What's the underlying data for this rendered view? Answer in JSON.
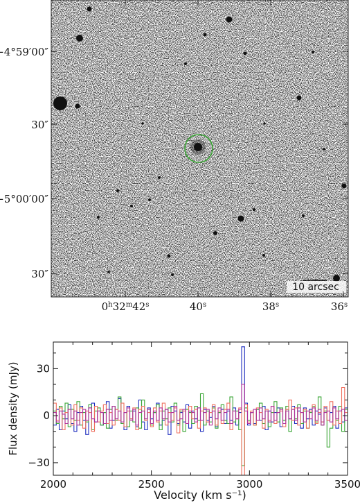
{
  "image_panel": {
    "dec_labels": [
      "−4°59′00″",
      "30″",
      "−5°00′00″",
      "30″"
    ],
    "ra_labels": [
      "0h32m42s",
      "40s",
      "38s",
      "36s"
    ],
    "scale_bar_label": "10 arcsec",
    "circle_color": "#3aa635"
  },
  "chart_data": {
    "type": "line",
    "title": "",
    "xlabel": "Velocity (km s⁻¹)",
    "ylabel": "Flux density (mJy)",
    "xlim": [
      2000,
      3500
    ],
    "ylim": [
      -38,
      47
    ],
    "xticks": [
      2000,
      2500,
      3000,
      3500
    ],
    "yticks": [
      -30,
      0,
      30
    ],
    "x_start": 2000,
    "x_step": 15,
    "series": [
      {
        "color": "#1f2fbf",
        "values": [
          -6,
          4,
          -9,
          3,
          -2,
          7,
          -5,
          -10,
          2,
          6,
          -3,
          -12,
          5,
          8,
          -4,
          3,
          -6,
          2,
          9,
          -8,
          -3,
          4,
          11,
          -5,
          -9,
          6,
          -2,
          3,
          -7,
          10,
          -4,
          -9,
          5,
          -2,
          2,
          8,
          -6,
          -3,
          4,
          -12,
          6,
          3,
          -5,
          2,
          -4,
          7,
          -8,
          3,
          -2,
          5,
          -10,
          4,
          -3,
          -1,
          6,
          -7,
          2,
          4,
          -5,
          3,
          -3,
          5,
          -6,
          2,
          44,
          8,
          -6,
          2,
          -5,
          4,
          -3,
          6,
          -9,
          3,
          -4,
          2,
          5,
          -7,
          -3,
          4,
          -2,
          6,
          -5,
          3,
          -8,
          5,
          -2,
          4,
          -6,
          3,
          1,
          -4,
          5,
          -3,
          2,
          6,
          -8,
          3,
          -4,
          5
        ]
      },
      {
        "color": "#3aa635",
        "values": [
          3,
          -5,
          6,
          -2,
          8,
          -7,
          4,
          -3,
          9,
          -6,
          2,
          -4,
          7,
          -9,
          3,
          5,
          -6,
          2,
          -8,
          4,
          6,
          -3,
          12,
          -5,
          2,
          -7,
          3,
          -4,
          5,
          -8,
          10,
          -3,
          4,
          -6,
          2,
          7,
          -9,
          3,
          -2,
          5,
          -4,
          8,
          -6,
          3,
          -10,
          4,
          2,
          -5,
          6,
          -3,
          14,
          -6,
          3,
          -4,
          5,
          -8,
          2,
          7,
          -3,
          -5,
          12,
          -4,
          3,
          -9,
          -32,
          5,
          -3,
          2,
          -6,
          4,
          8,
          -5,
          3,
          -7,
          2,
          9,
          -4,
          5,
          -3,
          6,
          -10,
          4,
          -2,
          7,
          -5,
          3,
          -8,
          2,
          6,
          -4,
          12,
          -6,
          3,
          -20,
          -8,
          5,
          -3,
          6,
          -10,
          4
        ]
      },
      {
        "color": "#ef6f5e",
        "values": [
          8,
          -3,
          5,
          -9,
          2,
          4,
          -6,
          7,
          -3,
          5,
          -8,
          3,
          2,
          -10,
          6,
          -4,
          3,
          7,
          -5,
          2,
          -6,
          4,
          -3,
          8,
          -7,
          3,
          -2,
          5,
          -9,
          4,
          6,
          -3,
          2,
          -7,
          5,
          -4,
          3,
          8,
          -6,
          2,
          -3,
          5,
          -11,
          4,
          3,
          -5,
          6,
          -2,
          4,
          -8,
          3,
          5,
          -4,
          2,
          7,
          -6,
          3,
          -5,
          4,
          8,
          -9,
          3,
          -2,
          5,
          -38,
          7,
          -4,
          3,
          -6,
          5,
          2,
          -8,
          4,
          -3,
          6,
          -5,
          2,
          3,
          -7,
          4,
          10,
          -3,
          5,
          -6,
          2,
          4,
          -8,
          3,
          7,
          -5,
          2,
          -4,
          6,
          -3,
          9,
          -6,
          3,
          -5,
          18,
          2
        ]
      },
      {
        "color": "#b0309a",
        "values": [
          2,
          -4,
          3,
          1,
          -5,
          4,
          -2,
          3,
          -6,
          2,
          4,
          -3,
          5,
          -2,
          -4,
          3,
          2,
          -5,
          4,
          -3,
          6,
          -2,
          3,
          -4,
          2,
          5,
          -3,
          4,
          -6,
          2,
          3,
          -2,
          4,
          -5,
          3,
          -3,
          5,
          -2,
          4,
          -4,
          2,
          6,
          -3,
          -2,
          4,
          -5,
          3,
          2,
          -4,
          5,
          -3,
          2,
          4,
          -6,
          3,
          -2,
          5,
          -3,
          2,
          4,
          -5,
          3,
          -2,
          4,
          20,
          3,
          -5,
          2,
          4,
          -3,
          5,
          -2,
          3,
          -4,
          6,
          -3,
          2,
          4,
          -5,
          3,
          -2,
          4,
          -3,
          5,
          2,
          -4,
          3,
          -2,
          5,
          -3,
          4,
          -6,
          2,
          3,
          -4,
          5,
          -2,
          3,
          4,
          -3
        ]
      }
    ]
  }
}
